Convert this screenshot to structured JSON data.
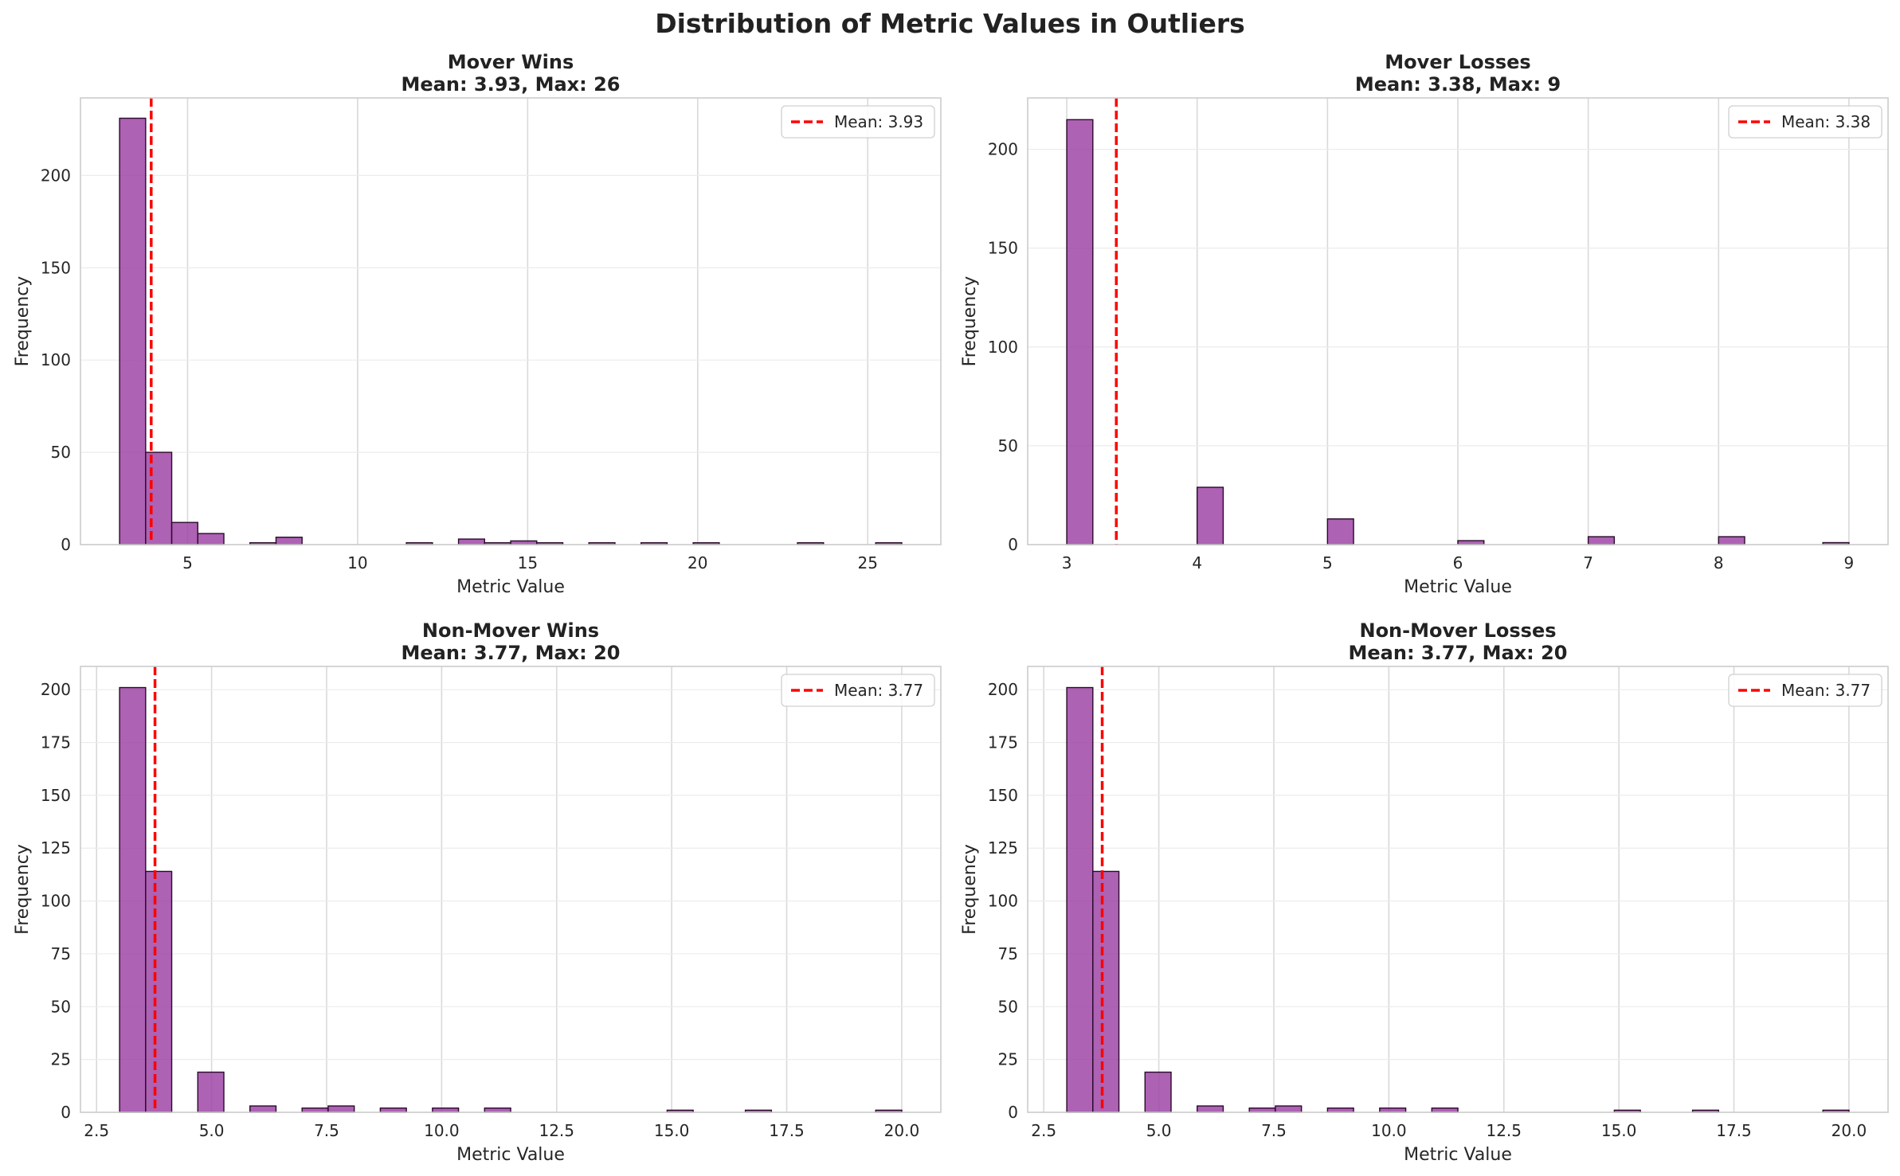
{
  "figure_title": "Distribution of Metric Values in Outliers",
  "colors": {
    "bar_fill": "#9b3fa3",
    "bar_edge": "#2a0a2a",
    "mean_line": "#ff0000",
    "grid": "#d9d9d9",
    "spine": "#cccccc"
  },
  "chart_data": [
    {
      "type": "bar",
      "title": "Mover Wins",
      "subtitle": "Mean: 3.93, Max: 26",
      "xlabel": "Metric Value",
      "ylabel": "Frequency",
      "xlim": [
        1.85,
        27.15
      ],
      "ylim": [
        0,
        242
      ],
      "xticks": [
        5,
        10,
        15,
        20,
        25
      ],
      "xtick_labels": [
        "5",
        "10",
        "15",
        "20",
        "25"
      ],
      "yticks": [
        0,
        50,
        100,
        150,
        200
      ],
      "ytick_labels": [
        "0",
        "50",
        "100",
        "150",
        "200"
      ],
      "bin_start": 3.0,
      "bin_width": 0.7667,
      "counts": [
        231,
        50,
        12,
        6,
        0,
        1,
        4,
        0,
        0,
        0,
        0,
        1,
        0,
        3,
        1,
        2,
        1,
        0,
        1,
        0,
        1,
        0,
        1,
        0,
        0,
        0,
        1,
        0,
        0,
        1
      ],
      "mean": 3.93,
      "legend": "Mean: 3.93",
      "legend_position": "upper right",
      "grid": true
    },
    {
      "type": "bar",
      "title": "Mover Losses",
      "subtitle": "Mean: 3.38, Max: 9",
      "xlabel": "Metric Value",
      "ylabel": "Frequency",
      "xlim": [
        2.7,
        9.3
      ],
      "ylim": [
        0,
        226
      ],
      "xticks": [
        3,
        4,
        5,
        6,
        7,
        8,
        9
      ],
      "xtick_labels": [
        "3",
        "4",
        "5",
        "6",
        "7",
        "8",
        "9"
      ],
      "yticks": [
        0,
        50,
        100,
        150,
        200
      ],
      "ytick_labels": [
        "0",
        "50",
        "100",
        "150",
        "200"
      ],
      "bin_start": 3.0,
      "bin_width": 0.2,
      "counts": [
        215,
        0,
        0,
        0,
        0,
        29,
        0,
        0,
        0,
        0,
        13,
        0,
        0,
        0,
        0,
        2,
        0,
        0,
        0,
        0,
        4,
        0,
        0,
        0,
        0,
        4,
        0,
        0,
        0,
        1
      ],
      "mean": 3.38,
      "legend": "Mean: 3.38",
      "legend_position": "upper right",
      "grid": true
    },
    {
      "type": "bar",
      "title": "Non-Mover Wins",
      "subtitle": "Mean: 3.77, Max: 20",
      "xlabel": "Metric Value",
      "ylabel": "Frequency",
      "xlim": [
        2.15,
        20.85
      ],
      "ylim": [
        0,
        211
      ],
      "xticks": [
        2.5,
        5.0,
        7.5,
        10.0,
        12.5,
        15.0,
        17.5,
        20.0
      ],
      "xtick_labels": [
        "2.5",
        "5.0",
        "7.5",
        "10.0",
        "12.5",
        "15.0",
        "17.5",
        "20.0"
      ],
      "yticks": [
        0,
        25,
        50,
        75,
        100,
        125,
        150,
        175,
        200
      ],
      "ytick_labels": [
        "0",
        "25",
        "50",
        "75",
        "100",
        "125",
        "150",
        "175",
        "200"
      ],
      "bin_start": 3.0,
      "bin_width": 0.5667,
      "counts": [
        201,
        114,
        0,
        19,
        0,
        3,
        0,
        2,
        3,
        0,
        2,
        0,
        2,
        0,
        2,
        0,
        0,
        0,
        0,
        0,
        0,
        1,
        0,
        0,
        1,
        0,
        0,
        0,
        0,
        1
      ],
      "mean": 3.77,
      "legend": "Mean: 3.77",
      "legend_position": "upper right",
      "grid": true
    },
    {
      "type": "bar",
      "title": "Non-Mover Losses",
      "subtitle": "Mean: 3.77, Max: 20",
      "xlabel": "Metric Value",
      "ylabel": "Frequency",
      "xlim": [
        2.15,
        20.85
      ],
      "ylim": [
        0,
        211
      ],
      "xticks": [
        2.5,
        5.0,
        7.5,
        10.0,
        12.5,
        15.0,
        17.5,
        20.0
      ],
      "xtick_labels": [
        "2.5",
        "5.0",
        "7.5",
        "10.0",
        "12.5",
        "15.0",
        "17.5",
        "20.0"
      ],
      "yticks": [
        0,
        25,
        50,
        75,
        100,
        125,
        150,
        175,
        200
      ],
      "ytick_labels": [
        "0",
        "25",
        "50",
        "75",
        "100",
        "125",
        "150",
        "175",
        "200"
      ],
      "bin_start": 3.0,
      "bin_width": 0.5667,
      "counts": [
        201,
        114,
        0,
        19,
        0,
        3,
        0,
        2,
        3,
        0,
        2,
        0,
        2,
        0,
        2,
        0,
        0,
        0,
        0,
        0,
        0,
        1,
        0,
        0,
        1,
        0,
        0,
        0,
        0,
        1
      ],
      "mean": 3.77,
      "legend": "Mean: 3.77",
      "legend_position": "upper right",
      "grid": true
    }
  ]
}
